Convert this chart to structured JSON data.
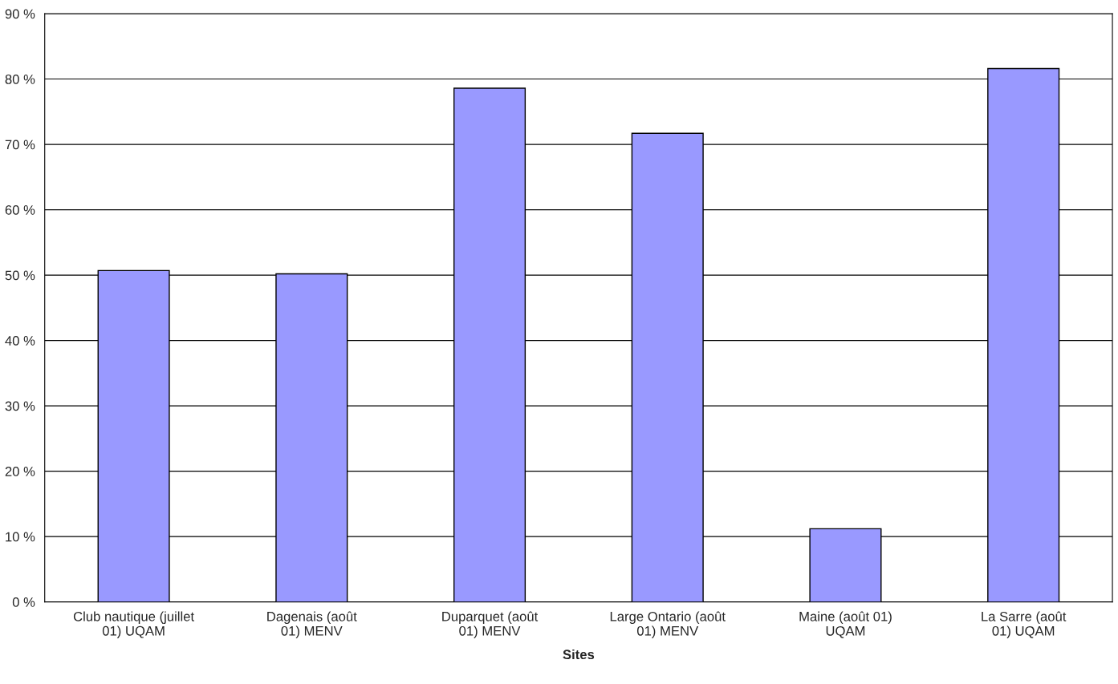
{
  "chart_data": {
    "type": "bar",
    "xlabel": "Sites",
    "categories": [
      "Club nautique (juillet\n01) UQAM",
      "Dagenais (août\n01) MENV",
      "Duparquet (août\n01) MENV",
      "Large Ontario (août\n01) MENV",
      "Maine (août 01)\nUQAM",
      "La Sarre (août\n01) UQAM"
    ],
    "values": [
      50.7,
      50.2,
      78.6,
      71.7,
      11.2,
      81.6
    ],
    "color": "#9999ff",
    "ylim": [
      0,
      90
    ],
    "yticks": [
      {
        "value": 0,
        "label": "0 %"
      },
      {
        "value": 10,
        "label": "10 %"
      },
      {
        "value": 20,
        "label": "20 %"
      },
      {
        "value": 30,
        "label": "30 %"
      },
      {
        "value": 40,
        "label": "40 %"
      },
      {
        "value": 50,
        "label": "50 %"
      },
      {
        "value": 60,
        "label": "60 %"
      },
      {
        "value": 70,
        "label": "70 %"
      },
      {
        "value": 80,
        "label": "80 %"
      },
      {
        "value": 90,
        "label": "90 %"
      }
    ],
    "grid": "y",
    "legend": false
  }
}
